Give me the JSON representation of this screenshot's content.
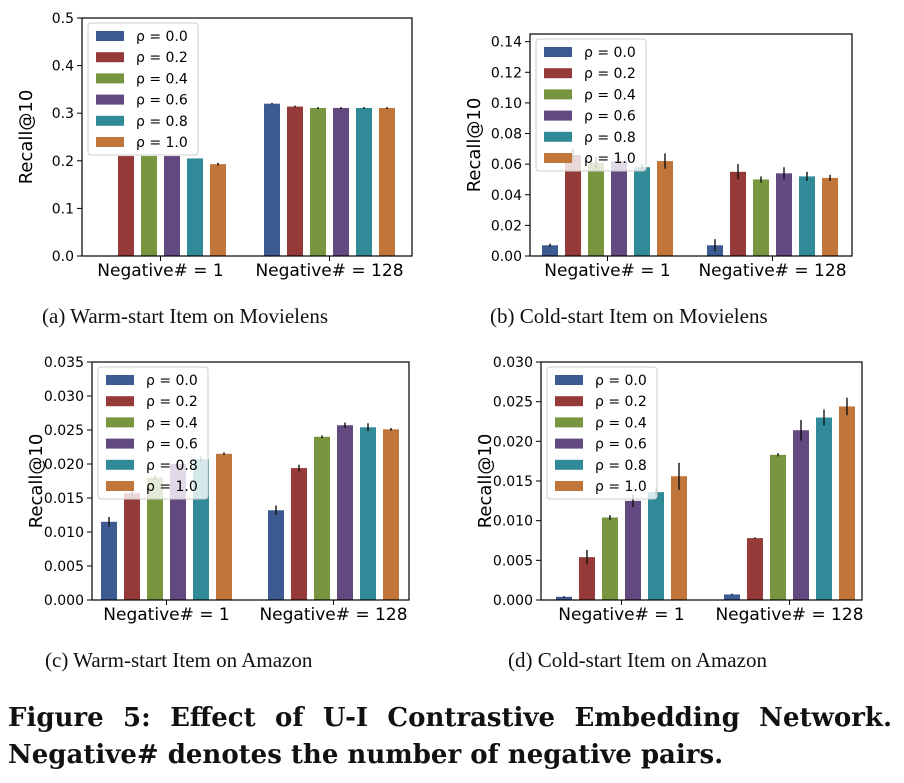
{
  "chart_data": [
    {
      "type": "bar",
      "ylabel": "Recall@10",
      "ylim": [
        0,
        0.5
      ],
      "yticks": [
        "0.0",
        "0.1",
        "0.2",
        "0.3",
        "0.4",
        "0.5"
      ],
      "categories": [
        "Negative# = 1",
        "Negative# = 128"
      ],
      "legend": "top-left",
      "series": [
        {
          "name": "ρ = 0.0",
          "values": [
            0.0,
            0.32
          ],
          "err": [
            0,
            0.002
          ]
        },
        {
          "name": "ρ = 0.2",
          "values": [
            0.21,
            0.314
          ],
          "err": [
            0,
            0.002
          ]
        },
        {
          "name": "ρ = 0.4",
          "values": [
            0.21,
            0.311
          ],
          "err": [
            0,
            0.002
          ]
        },
        {
          "name": "ρ = 0.6",
          "values": [
            0.21,
            0.311
          ],
          "err": [
            0,
            0.002
          ]
        },
        {
          "name": "ρ = 0.8",
          "values": [
            0.205,
            0.311
          ],
          "err": [
            0,
            0.002
          ]
        },
        {
          "name": "ρ = 1.0",
          "values": [
            0.193,
            0.311
          ],
          "err": [
            0.003,
            0.002
          ]
        }
      ]
    },
    {
      "type": "bar",
      "ylabel": "Recall@10",
      "ylim": [
        0,
        0.145
      ],
      "yticks": [
        "0.00",
        "0.02",
        "0.04",
        "0.06",
        "0.08",
        "0.10",
        "0.12",
        "0.14"
      ],
      "categories": [
        "Negative# = 1",
        "Negative# = 128"
      ],
      "legend": "top-left",
      "series": [
        {
          "name": "ρ = 0.0",
          "values": [
            0.007,
            0.007
          ],
          "err": [
            0.001,
            0.004
          ]
        },
        {
          "name": "ρ = 0.2",
          "values": [
            0.066,
            0.055
          ],
          "err": [
            0.004,
            0.005
          ]
        },
        {
          "name": "ρ = 0.4",
          "values": [
            0.061,
            0.05
          ],
          "err": [
            0.004,
            0.002
          ]
        },
        {
          "name": "ρ = 0.6",
          "values": [
            0.062,
            0.054
          ],
          "err": [
            0.003,
            0.004
          ]
        },
        {
          "name": "ρ = 0.8",
          "values": [
            0.058,
            0.052
          ],
          "err": [
            0.002,
            0.003
          ]
        },
        {
          "name": "ρ = 1.0",
          "values": [
            0.062,
            0.051
          ],
          "err": [
            0.005,
            0.002
          ]
        }
      ]
    },
    {
      "type": "bar",
      "ylabel": "Recall@10",
      "ylim": [
        0,
        0.035
      ],
      "yticks": [
        "0.000",
        "0.005",
        "0.010",
        "0.015",
        "0.020",
        "0.025",
        "0.030",
        "0.035"
      ],
      "categories": [
        "Negative# = 1",
        "Negative# = 128"
      ],
      "legend": "top-left",
      "series": [
        {
          "name": "ρ = 0.0",
          "values": [
            0.0115,
            0.0132
          ],
          "err": [
            0.0007,
            0.0007
          ]
        },
        {
          "name": "ρ = 0.2",
          "values": [
            0.0157,
            0.0194
          ],
          "err": [
            0.0004,
            0.0005
          ]
        },
        {
          "name": "ρ = 0.4",
          "values": [
            0.018,
            0.024
          ],
          "err": [
            0.0003,
            0.0002
          ]
        },
        {
          "name": "ρ = 0.6",
          "values": [
            0.02,
            0.0257
          ],
          "err": [
            0.0004,
            0.0004
          ]
        },
        {
          "name": "ρ = 0.8",
          "values": [
            0.0207,
            0.0254
          ],
          "err": [
            0.0004,
            0.0006
          ]
        },
        {
          "name": "ρ = 1.0",
          "values": [
            0.0215,
            0.0251
          ],
          "err": [
            0.0002,
            0.0002
          ]
        }
      ]
    },
    {
      "type": "bar",
      "ylabel": "Recall@10",
      "ylim": [
        0,
        0.03
      ],
      "yticks": [
        "0.000",
        "0.005",
        "0.010",
        "0.015",
        "0.020",
        "0.025",
        "0.030"
      ],
      "categories": [
        "Negative# = 1",
        "Negative# = 128"
      ],
      "legend": "top-left",
      "series": [
        {
          "name": "ρ = 0.0",
          "values": [
            0.0004,
            0.0007
          ],
          "err": [
            0.0001,
            0.0001
          ]
        },
        {
          "name": "ρ = 0.2",
          "values": [
            0.0054,
            0.0078
          ],
          "err": [
            0.0009,
            0.0001
          ]
        },
        {
          "name": "ρ = 0.4",
          "values": [
            0.0104,
            0.0183
          ],
          "err": [
            0.0003,
            0.0002
          ]
        },
        {
          "name": "ρ = 0.6",
          "values": [
            0.0125,
            0.0214
          ],
          "err": [
            0.0008,
            0.0013
          ]
        },
        {
          "name": "ρ = 0.8",
          "values": [
            0.0136,
            0.023
          ],
          "err": [
            0.0004,
            0.001
          ]
        },
        {
          "name": "ρ = 1.0",
          "values": [
            0.0156,
            0.0244
          ],
          "err": [
            0.0017,
            0.0011
          ]
        }
      ]
    }
  ],
  "series_colors": [
    "#3b5b92",
    "#963939",
    "#77963f",
    "#62497f",
    "#318a98",
    "#c0763a"
  ],
  "subcaptions": [
    "(a)  Warm-start Item on Movielens",
    "(b)  Cold-start Item on Movielens",
    "(c)  Warm-start Item on Amazon",
    "(d)  Cold-start Item on Amazon"
  ],
  "caption": {
    "line1": "Figure 5: Effect of U-I Contrastive Embedding Network.",
    "line2": "Negative# denotes the number of negative pairs."
  }
}
